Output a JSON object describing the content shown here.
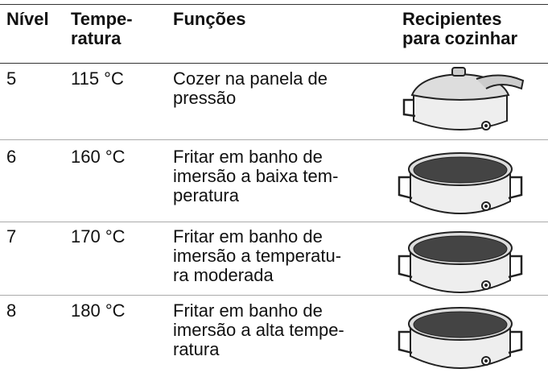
{
  "table": {
    "header": [
      "Nível",
      "Tempe-\nratura",
      "Funções",
      "Recipientes\npara cozinhar"
    ],
    "rows": [
      [
        "5",
        "115 °C",
        "Cozer na panela de\npressão"
      ],
      [
        "6",
        "160 °C",
        "Fritar em banho de\nimersão a baixa tem-\nperatura"
      ],
      [
        "7",
        "170 °C",
        "Fritar em banho de\nimersão a temperatu-\nra moderada"
      ],
      [
        "8",
        "180 °C",
        "Fritar em banho de\nimersão a alta tempe-\nratura"
      ]
    ]
  }
}
